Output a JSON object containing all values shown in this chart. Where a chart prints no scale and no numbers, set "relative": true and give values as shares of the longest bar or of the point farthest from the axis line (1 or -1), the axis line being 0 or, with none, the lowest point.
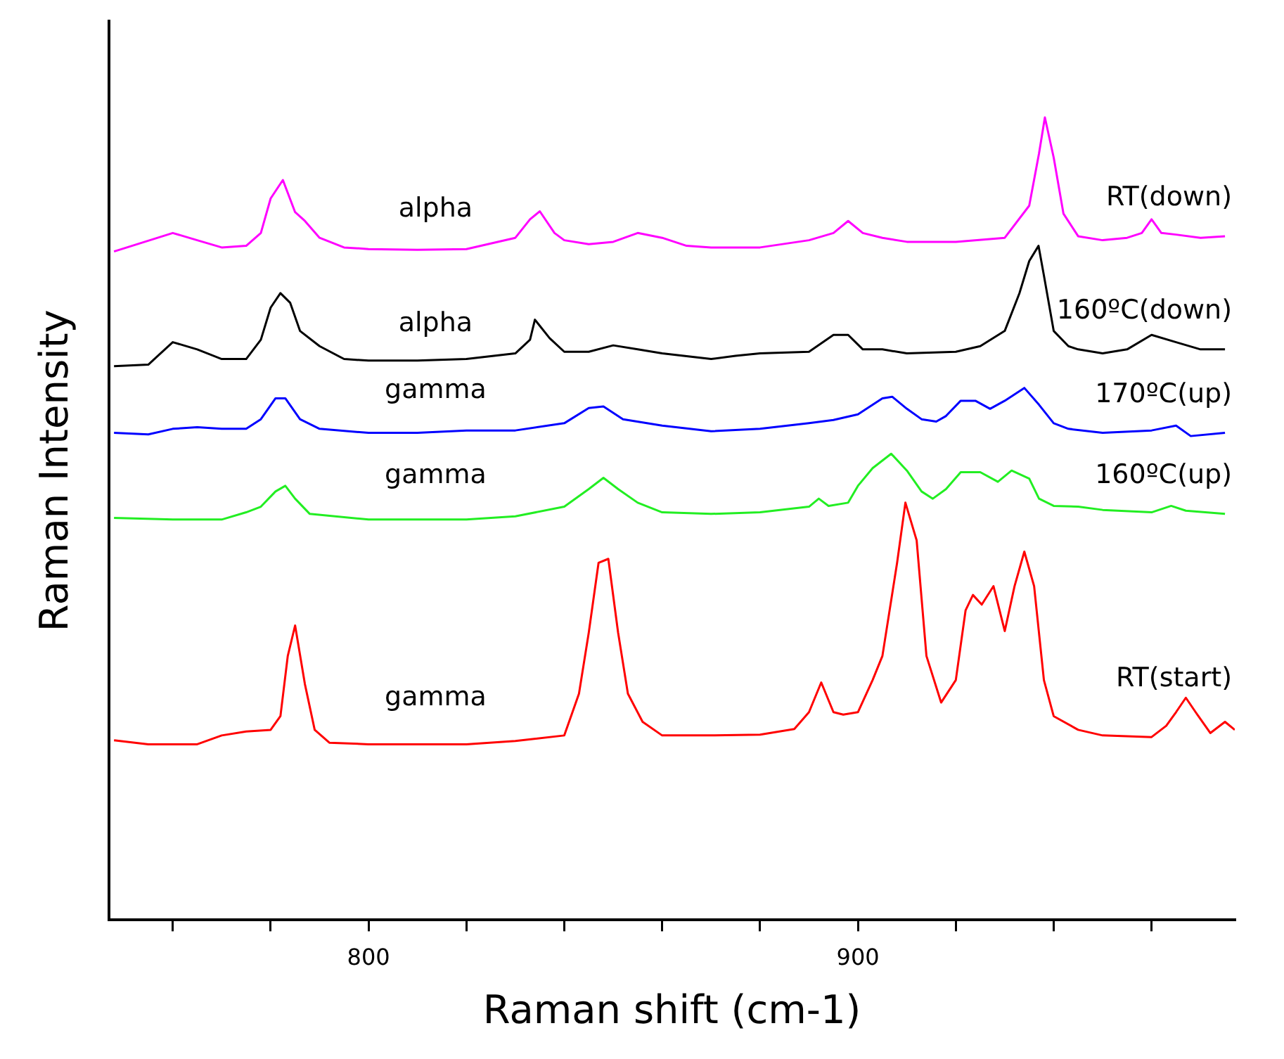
{
  "chart_data": {
    "type": "line",
    "relative": true,
    "xlabel": "Raman shift (cm-1)",
    "ylabel": "Raman Intensity",
    "xlim": [
      747,
      977
    ],
    "xticks": [
      {
        "value": 760,
        "label": null
      },
      {
        "value": 780,
        "label": null
      },
      800,
      {
        "value": 820,
        "label": null
      },
      {
        "value": 840,
        "label": null
      },
      {
        "value": 860,
        "label": null
      },
      {
        "value": 880,
        "label": null
      },
      900,
      {
        "value": 920,
        "label": null
      },
      {
        "value": 940,
        "label": null
      },
      {
        "value": 960,
        "label": null
      }
    ],
    "grid": false,
    "legend": false,
    "marker": "none",
    "line_style": "solid",
    "annotations": [
      "alpha",
      "alpha",
      "gamma",
      "gamma",
      "gamma"
    ],
    "series": [
      {
        "name": "RT(down)",
        "color": "#ff00ff",
        "x": [
          748,
          760,
          765,
          770,
          775,
          778,
          780,
          782.5,
          785,
          787,
          790,
          795,
          800,
          810,
          820,
          830,
          833,
          835,
          838,
          840,
          845,
          850,
          855,
          860,
          865,
          870,
          880,
          890,
          895,
          898,
          901,
          905,
          910,
          920,
          930,
          935,
          937,
          938.2,
          940,
          942,
          945,
          950,
          955,
          958,
          960,
          962,
          965,
          970,
          975
        ],
        "values": [
          0.833,
          0.856,
          0.847,
          0.838,
          0.84,
          0.856,
          0.899,
          0.922,
          0.882,
          0.871,
          0.85,
          0.838,
          0.836,
          0.835,
          0.836,
          0.85,
          0.873,
          0.883,
          0.856,
          0.847,
          0.842,
          0.845,
          0.856,
          0.85,
          0.84,
          0.838,
          0.838,
          0.847,
          0.856,
          0.871,
          0.856,
          0.85,
          0.845,
          0.845,
          0.85,
          0.89,
          0.955,
          1,
          0.95,
          0.88,
          0.852,
          0.847,
          0.85,
          0.856,
          0.873,
          0.856,
          0.854,
          0.85,
          0.852
        ]
      },
      {
        "name": "160ºC(down)",
        "color": "#000000",
        "x": [
          748,
          755,
          760,
          765,
          770,
          775,
          778,
          780,
          782,
          784,
          786,
          790,
          795,
          800,
          810,
          820,
          830,
          833,
          834,
          837,
          840,
          845,
          850,
          855,
          860,
          870,
          875,
          880,
          890,
          895,
          898,
          901,
          905,
          910,
          920,
          925,
          930,
          933,
          935,
          936.9,
          938,
          940,
          943,
          945,
          950,
          955,
          960,
          965,
          970,
          975
        ],
        "values": [
          0.69,
          0.692,
          0.72,
          0.711,
          0.699,
          0.699,
          0.723,
          0.763,
          0.781,
          0.769,
          0.734,
          0.715,
          0.699,
          0.697,
          0.697,
          0.699,
          0.706,
          0.723,
          0.748,
          0.725,
          0.708,
          0.708,
          0.716,
          0.711,
          0.706,
          0.699,
          0.703,
          0.706,
          0.708,
          0.729,
          0.729,
          0.711,
          0.711,
          0.706,
          0.708,
          0.715,
          0.734,
          0.781,
          0.821,
          0.84,
          0.803,
          0.734,
          0.715,
          0.711,
          0.706,
          0.711,
          0.729,
          0.72,
          0.711,
          0.711
        ]
      },
      {
        "name": "170ºC(up)",
        "color": "#0000ff",
        "x": [
          748,
          755,
          760,
          765,
          770,
          775,
          778,
          781,
          783,
          786,
          790,
          800,
          810,
          820,
          830,
          840,
          845,
          848,
          852,
          860,
          870,
          880,
          890,
          895,
          900,
          905,
          907,
          910,
          913,
          916,
          918,
          921,
          924,
          927,
          930,
          934,
          937,
          940,
          943,
          950,
          960,
          965,
          968,
          975
        ],
        "values": [
          0.607,
          0.605,
          0.612,
          0.614,
          0.612,
          0.612,
          0.624,
          0.65,
          0.65,
          0.624,
          0.612,
          0.607,
          0.607,
          0.61,
          0.61,
          0.619,
          0.638,
          0.64,
          0.624,
          0.616,
          0.609,
          0.612,
          0.619,
          0.623,
          0.63,
          0.65,
          0.652,
          0.637,
          0.624,
          0.621,
          0.628,
          0.647,
          0.647,
          0.637,
          0.647,
          0.663,
          0.642,
          0.619,
          0.612,
          0.607,
          0.61,
          0.616,
          0.603,
          0.607
        ]
      },
      {
        "name": "160ºC(up)",
        "color": "#22ee22",
        "x": [
          748,
          760,
          770,
          775,
          778,
          781,
          783,
          785,
          788,
          800,
          820,
          830,
          840,
          845,
          848,
          851,
          855,
          860,
          870,
          880,
          890,
          892,
          894,
          898,
          900,
          903,
          906.8,
          910,
          913,
          915.3,
          918,
          921,
          925,
          928.6,
          931.4,
          935,
          937,
          940,
          945,
          950,
          960,
          964,
          967,
          975
        ],
        "values": [
          0.501,
          0.499,
          0.499,
          0.508,
          0.515,
          0.534,
          0.541,
          0.525,
          0.506,
          0.499,
          0.499,
          0.503,
          0.515,
          0.537,
          0.551,
          0.537,
          0.52,
          0.508,
          0.506,
          0.508,
          0.515,
          0.525,
          0.516,
          0.52,
          0.541,
          0.563,
          0.581,
          0.56,
          0.534,
          0.525,
          0.537,
          0.558,
          0.558,
          0.546,
          0.56,
          0.55,
          0.525,
          0.516,
          0.515,
          0.511,
          0.508,
          0.516,
          0.51,
          0.506
        ]
      },
      {
        "name": "RT(start)",
        "color": "#ff0000",
        "x": [
          748,
          755,
          765,
          770,
          775,
          780,
          782,
          783.5,
          785,
          787,
          789,
          792,
          800,
          810,
          820,
          830,
          840,
          843,
          845,
          847,
          849,
          851,
          853,
          856,
          860,
          870,
          880,
          887,
          890,
          892.5,
          895,
          897,
          900,
          903,
          905,
          908,
          909.7,
          912,
          914,
          917,
          920,
          922,
          923.5,
          925.3,
          927.7,
          930,
          932,
          934,
          936,
          938,
          940,
          945,
          950,
          960,
          963,
          965,
          967,
          969,
          972,
          975,
          977
        ],
        "values": [
          0.224,
          0.219,
          0.219,
          0.23,
          0.235,
          0.237,
          0.254,
          0.329,
          0.367,
          0.294,
          0.237,
          0.221,
          0.219,
          0.219,
          0.219,
          0.223,
          0.23,
          0.282,
          0.358,
          0.445,
          0.45,
          0.358,
          0.282,
          0.247,
          0.23,
          0.23,
          0.231,
          0.238,
          0.259,
          0.296,
          0.259,
          0.256,
          0.259,
          0.299,
          0.329,
          0.445,
          0.52,
          0.473,
          0.329,
          0.271,
          0.299,
          0.386,
          0.405,
          0.393,
          0.416,
          0.36,
          0.416,
          0.459,
          0.416,
          0.299,
          0.254,
          0.237,
          0.23,
          0.228,
          0.242,
          0.259,
          0.277,
          0.259,
          0.233,
          0.247,
          0.237
        ]
      }
    ]
  }
}
